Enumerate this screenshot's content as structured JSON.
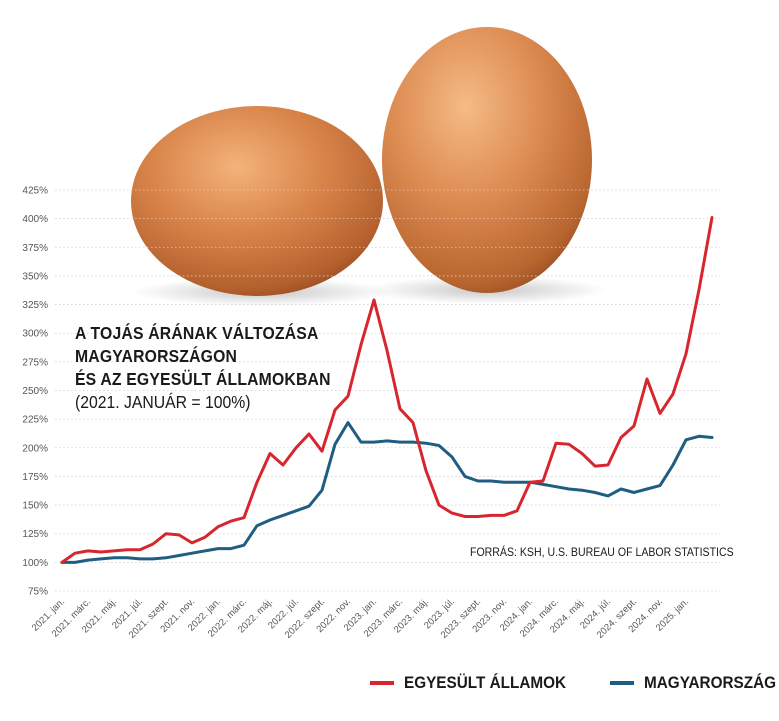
{
  "colors": {
    "us": "#d7262e",
    "hu": "#1f5d82",
    "grid": "#cfcfcf"
  },
  "title": {
    "line1": "A TOJÁS ÁRÁNAK VÁLTOZÁSA",
    "line2": "MAGYARORSZÁGON",
    "line3": "ÉS AZ EGYESÜLT ÁLLAMOKBAN",
    "line4": "(2021. JANUÁR = 100%)"
  },
  "source": "FORRÁS: KSH, U.S. BUREAU OF LABOR STATISTICS",
  "legend": {
    "us": "EGYESÜLT ÁLLAMOK",
    "hu": "MAGYARORSZÁG"
  },
  "chart_data": {
    "type": "line",
    "ylim": [
      75,
      425
    ],
    "y_ticks": [
      "75%",
      "100%",
      "125%",
      "150%",
      "175%",
      "200%",
      "225%",
      "250%",
      "275%",
      "300%",
      "325%",
      "350%",
      "375%",
      "400%",
      "425%"
    ],
    "x_tick_labels": [
      "2021. jan.",
      "2021. márc.",
      "2021. máj.",
      "2021. júl.",
      "2021. szept.",
      "2021. nov.",
      "2022. jan.",
      "2022. márc.",
      "2022. máj.",
      "2022. júl.",
      "2022. szept.",
      "2022. nov.",
      "2023. jan.",
      "2023. márc.",
      "2023. máj.",
      "2023. júl.",
      "2023. szept.",
      "2023. nov.",
      "2024. jan.",
      "2024. márc.",
      "2024. máj.",
      "2024. júl.",
      "2024. szept.",
      "2024. nov.",
      "2025. jan."
    ],
    "grid": true,
    "legend_position": "bottom-right",
    "series": [
      {
        "name": "EGYESÜLT ÁLLAMOK",
        "color": "#d7262e",
        "values": [
          100,
          108,
          110,
          109,
          110,
          111,
          111,
          116,
          125,
          124,
          117,
          122,
          131,
          136,
          139,
          170,
          195,
          185,
          200,
          212,
          197,
          233,
          245,
          290,
          329,
          285,
          234,
          222,
          180,
          150,
          143,
          140,
          140,
          141,
          141,
          145,
          170,
          171,
          204,
          203,
          195,
          184,
          185,
          209,
          219,
          260,
          230,
          247,
          282,
          338,
          401
        ]
      },
      {
        "name": "MAGYARORSZÁG",
        "color": "#1f5d82",
        "values": [
          100,
          100,
          102,
          103,
          104,
          104,
          103,
          103,
          104,
          106,
          108,
          110,
          112,
          112,
          115,
          132,
          137,
          141,
          145,
          149,
          163,
          203,
          222,
          205,
          205,
          206,
          205,
          205,
          204,
          202,
          192,
          175,
          171,
          171,
          170,
          170,
          170,
          168,
          166,
          164,
          163,
          161,
          158,
          164,
          161,
          164,
          167,
          185,
          207,
          210,
          209
        ]
      }
    ]
  }
}
